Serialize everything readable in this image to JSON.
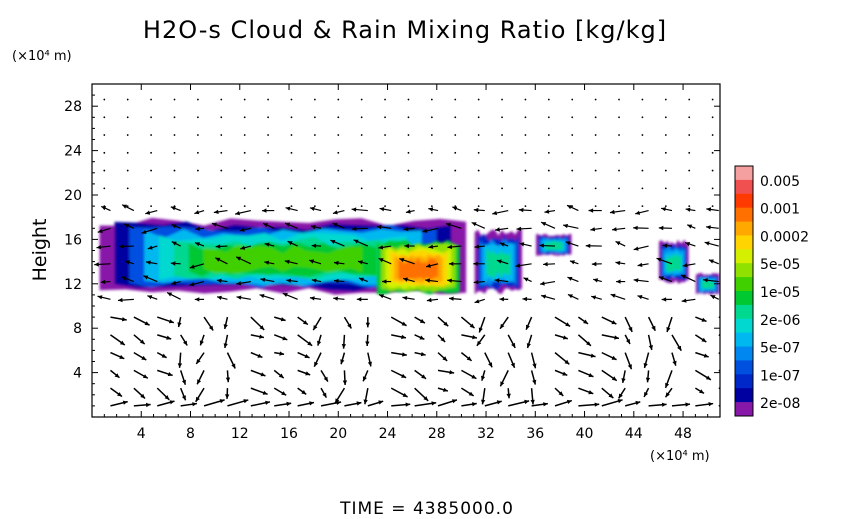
{
  "chart_data": {
    "type": "heatmap",
    "title": "H2O-s Cloud & Rain Mixing Ratio [kg/kg]",
    "xlabel": "",
    "ylabel": "Height",
    "x_unit": "(×10⁴ m)",
    "y_unit": "(×10⁴ m)",
    "footer": "TIME  =  4385000.0",
    "xlim": [
      0,
      51
    ],
    "ylim": [
      0,
      30
    ],
    "x_ticks": [
      4,
      8,
      12,
      16,
      20,
      24,
      28,
      32,
      36,
      40,
      44,
      48
    ],
    "y_ticks": [
      4,
      8,
      12,
      16,
      20,
      24,
      28
    ],
    "colorbar": {
      "labels": [
        "0.005",
        "0.001",
        "0.0002",
        "5e-05",
        "1e-05",
        "2e-06",
        "5e-07",
        "1e-07",
        "2e-08"
      ],
      "colors": [
        "#f4a0a0",
        "#f05050",
        "#ff3a00",
        "#ff7000",
        "#ffa800",
        "#ffd400",
        "#d4f000",
        "#90e000",
        "#40d000",
        "#00c830",
        "#00d890",
        "#00d8d0",
        "#00b8f0",
        "#0088f0",
        "#0050e0",
        "#0028c8",
        "#0000a0",
        "#8818a8"
      ]
    },
    "series": [
      {
        "type": "cloud-band",
        "x": [
          0,
          31
        ],
        "y": [
          11,
          18
        ],
        "values_range": [
          "2e-08",
          "0.0002"
        ]
      },
      {
        "type": "cloud-core",
        "x": [
          23,
          30
        ],
        "y": [
          11,
          16
        ],
        "values_range": [
          "5e-05",
          "0.0002"
        ]
      },
      {
        "type": "cloud-patch",
        "x": [
          31,
          35
        ],
        "y": [
          11,
          17
        ],
        "values_range": [
          "2e-08",
          "5e-07"
        ]
      },
      {
        "type": "cloud-patch",
        "x": [
          36,
          39
        ],
        "y": [
          14.5,
          16.5
        ],
        "values_range": [
          "2e-08",
          "5e-07"
        ]
      },
      {
        "type": "cloud-patch",
        "x": [
          46,
          48.5
        ],
        "y": [
          12,
          16
        ],
        "values_range": [
          "2e-08",
          "5e-05"
        ]
      },
      {
        "type": "cloud-patch",
        "x": [
          49,
          51
        ],
        "y": [
          11,
          13
        ],
        "values_range": [
          "1e-05",
          "0.0002"
        ]
      }
    ],
    "vectors": "wind field arrows across domain",
    "grid": false
  }
}
